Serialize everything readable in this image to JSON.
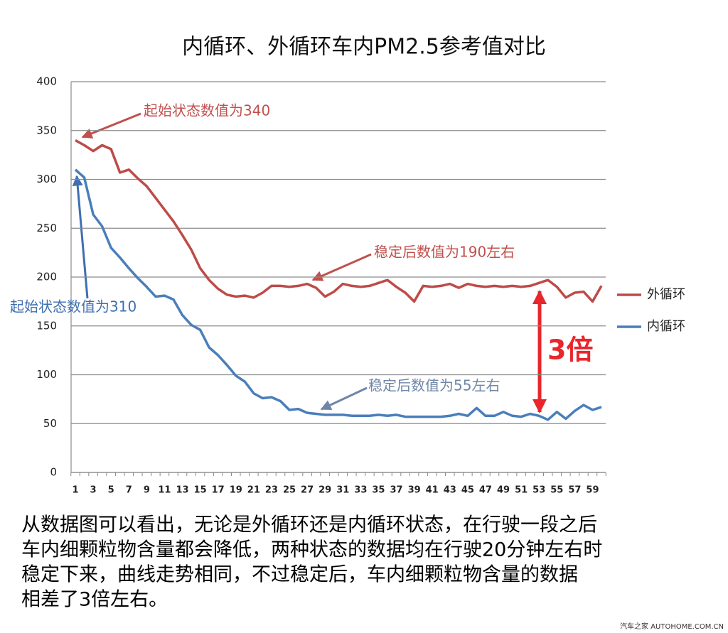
{
  "chart_data": {
    "type": "line",
    "title": "内循环、外循环车内PM2.5参考值对比",
    "categories": [
      1,
      null,
      3,
      null,
      5,
      null,
      7,
      null,
      9,
      null,
      11,
      null,
      13,
      null,
      15,
      null,
      17,
      null,
      19,
      null,
      21,
      null,
      23,
      null,
      25,
      null,
      27,
      null,
      29,
      null,
      31,
      null,
      33,
      null,
      35,
      null,
      37,
      null,
      39,
      null,
      41,
      null,
      43,
      null,
      45,
      null,
      47,
      null,
      49,
      null,
      51,
      null,
      53,
      null,
      55,
      null,
      57,
      null,
      59,
      null
    ],
    "series": [
      {
        "name": "外循环",
        "color": "#be4b48",
        "values": [
          340,
          335,
          329,
          335,
          331,
          307,
          310,
          301,
          293,
          281,
          269,
          257,
          243,
          228,
          209,
          197,
          188,
          182,
          180,
          181,
          179,
          184,
          191,
          191,
          190,
          191,
          193,
          189,
          180,
          185,
          193,
          191,
          190,
          191,
          194,
          197,
          190,
          184,
          175,
          191,
          190,
          191,
          193,
          189,
          193,
          191,
          190,
          191,
          190,
          191,
          190,
          191,
          194,
          197,
          190,
          179,
          184,
          185,
          175,
          191
        ]
      },
      {
        "name": "内循环",
        "color": "#4a7ebb",
        "values": [
          310,
          302,
          264,
          252,
          230,
          220,
          209,
          199,
          190,
          180,
          181,
          177,
          161,
          151,
          146,
          128,
          120,
          110,
          99,
          93,
          81,
          76,
          77,
          73,
          64,
          65,
          61,
          60,
          59,
          59,
          59,
          58,
          58,
          58,
          59,
          58,
          59,
          57,
          57,
          57,
          57,
          57,
          58,
          60,
          58,
          66,
          58,
          58,
          62,
          58,
          57,
          60,
          58,
          54,
          62,
          55,
          63,
          69,
          64,
          67
        ]
      }
    ],
    "ylim": [
      0,
      400
    ],
    "yticks": [
      0,
      50,
      100,
      150,
      200,
      250,
      300,
      350,
      400
    ],
    "grid": true,
    "legend": "right",
    "annotations": [
      {
        "text": "起始状态数值为340",
        "color": "#c0504d"
      },
      {
        "text": "起始状态数值为310",
        "color": "#3f6fb0"
      },
      {
        "text": "稳定后数值为190左右",
        "color": "#c0504d"
      },
      {
        "text": "稳定后数值为55左右",
        "color": "#6f86a8"
      },
      {
        "text": "3倍",
        "color": "#e8262c"
      }
    ],
    "description": [
      "从数据图可以看出，无论是外循环还是内循环状态，在行驶一段之后",
      "车内细颗粒物含量都会降低，两种状态的数据均在行驶20分钟左右时",
      "稳定下来，曲线走势相同，不过稳定后，车内细颗粒物含量的数据",
      "相差了3倍左右。"
    ],
    "watermark": "汽车之家 AUTOHOME.COM.CN"
  }
}
